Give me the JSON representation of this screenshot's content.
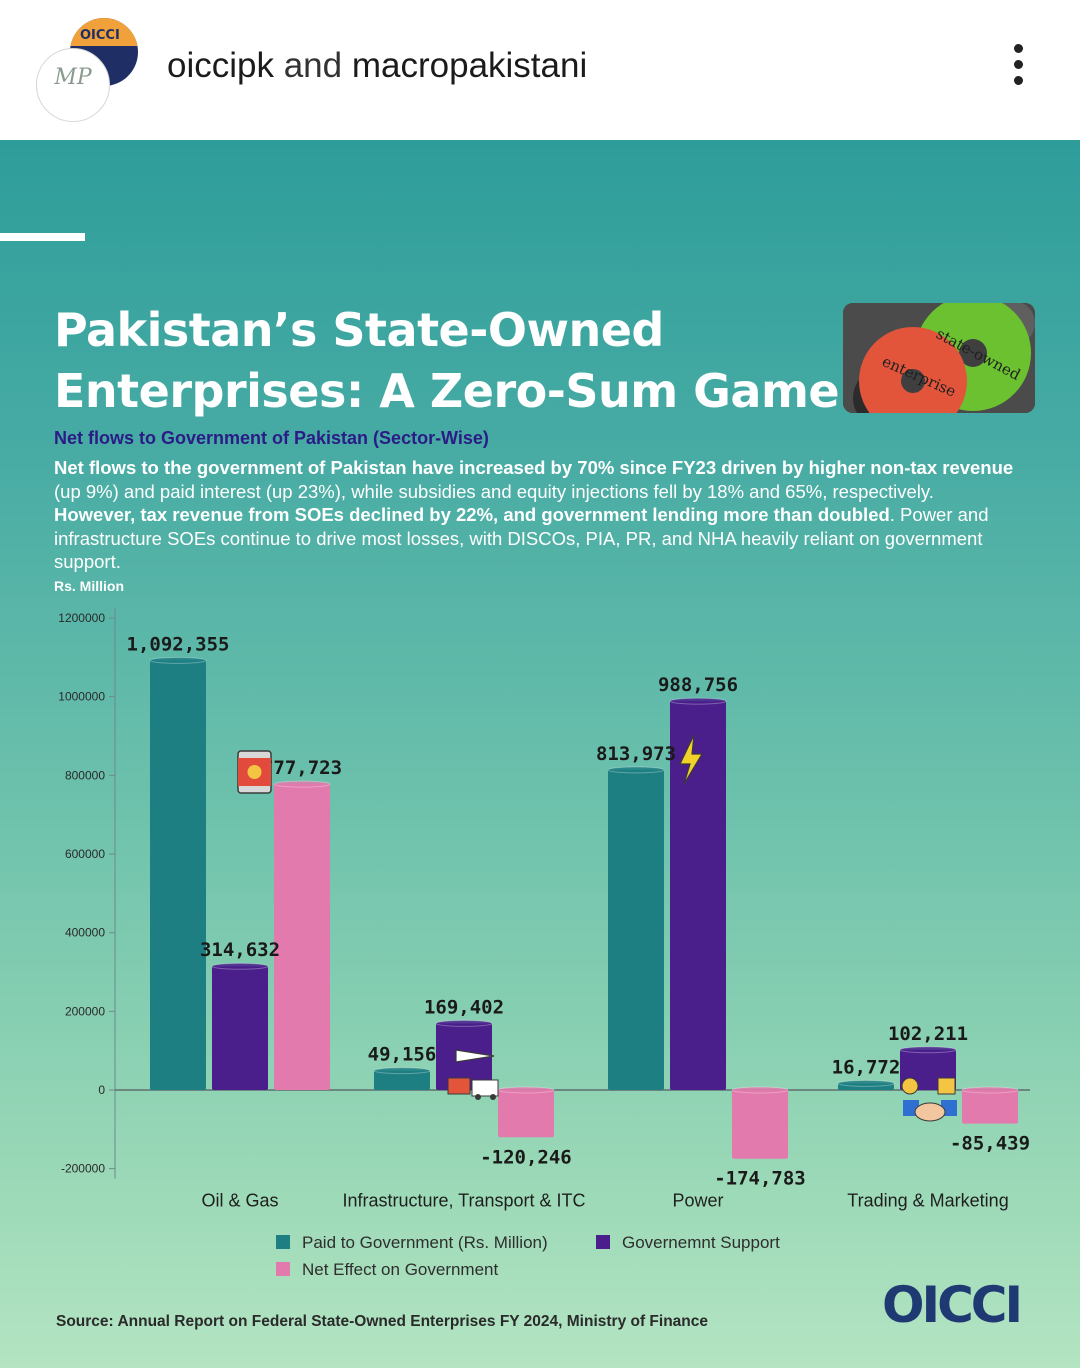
{
  "header": {
    "account1": "oiccipk",
    "joiner": "and",
    "account2": "macropakistani",
    "avatar_back_text": "OICCI",
    "avatar_front_text": "MP",
    "more_icon": "more-vertical-icon"
  },
  "post": {
    "title_line1": "Pakistan’s State-Owned",
    "title_line2": "Enterprises: A Zero-Sum Game",
    "image_text1": "state-owned",
    "image_text2": "enterprise",
    "subtitle": "Net flows to Government of Pakistan (Sector-Wise)",
    "desc": {
      "b1": "Net flows to the government of Pakistan have increased by 70% since FY23 driven by higher non-tax revenue",
      "t1": " (up 9%) and paid interest (up 23%), while subsidies and equity injections fell by 18% and 65%, respectively. ",
      "b2": "However, tax revenue from SOEs declined by 22%, and government lending more than doubled",
      "t2": ". Power and infrastructure SOEs continue to drive most losses, with DISCOs, PIA, PR, and NHA heavily reliant on government support."
    },
    "source": "Source: Annual Report on Federal State-Owned Enterprises FY 2024, Ministry of Finance",
    "logo_text": "OICCI"
  },
  "colors": {
    "paid": "#1e7f83",
    "support": "#4a1f8c",
    "net": "#e27aae",
    "title": "#ffffff",
    "subtitle": "#2b1b86"
  },
  "chart_data": {
    "type": "bar",
    "ylabel": "Rs. Million",
    "ylim": [
      -200000,
      1200000
    ],
    "yticks": [
      "1200000",
      "1000000",
      "800000",
      "600000",
      "400000",
      "200000",
      "0",
      "-200000"
    ],
    "categories": [
      "Oil & Gas",
      "Infrastructure, Transport & ITC",
      "Power",
      "Trading & Marketing"
    ],
    "category_icons": [
      "oil-barrel-icon",
      "transport-icon",
      "lightning-icon",
      "trade-handshake-icon"
    ],
    "series": [
      {
        "name": "Paid to Government (Rs. Million)",
        "values": [
          1092355,
          49156,
          813973,
          16772
        ],
        "labels": [
          "1,092,355",
          "49,156",
          "813,973",
          "16,772"
        ]
      },
      {
        "name": "Governemnt Support",
        "values": [
          314632,
          169402,
          988756,
          102211
        ],
        "labels": [
          "314,632",
          "169,402",
          "988,756",
          "102,211"
        ]
      },
      {
        "name": "Net Effect on Government",
        "values": [
          777723,
          -120246,
          -174783,
          -85439
        ],
        "labels": [
          "777,723",
          "-120,246",
          "-174,783",
          "-85,439"
        ]
      }
    ],
    "legend_position": "bottom",
    "grid": false
  }
}
